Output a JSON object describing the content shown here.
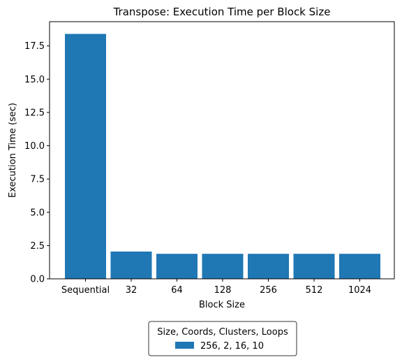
{
  "chart_data": {
    "type": "bar",
    "title": "Transpose: Execution Time per Block Size",
    "xlabel": "Block Size",
    "ylabel": "Execution Time (sec)",
    "categories": [
      "Sequential",
      "32",
      "64",
      "128",
      "256",
      "512",
      "1024"
    ],
    "series": [
      {
        "name": "256, 2, 16, 10",
        "values": [
          18.4,
          2.05,
          1.88,
          1.88,
          1.88,
          1.88,
          1.88
        ],
        "color": "#1f77b4"
      }
    ],
    "ylim": [
      0,
      19.32
    ],
    "yticks": [
      0.0,
      2.5,
      5.0,
      7.5,
      10.0,
      12.5,
      15.0,
      17.5
    ],
    "ytick_labels": [
      "0.0",
      "2.5",
      "5.0",
      "7.5",
      "10.0",
      "12.5",
      "15.0",
      "17.5"
    ],
    "grid": false,
    "legend": {
      "title": "Size, Coords, Clusters, Loops",
      "placement": "below-center"
    }
  }
}
